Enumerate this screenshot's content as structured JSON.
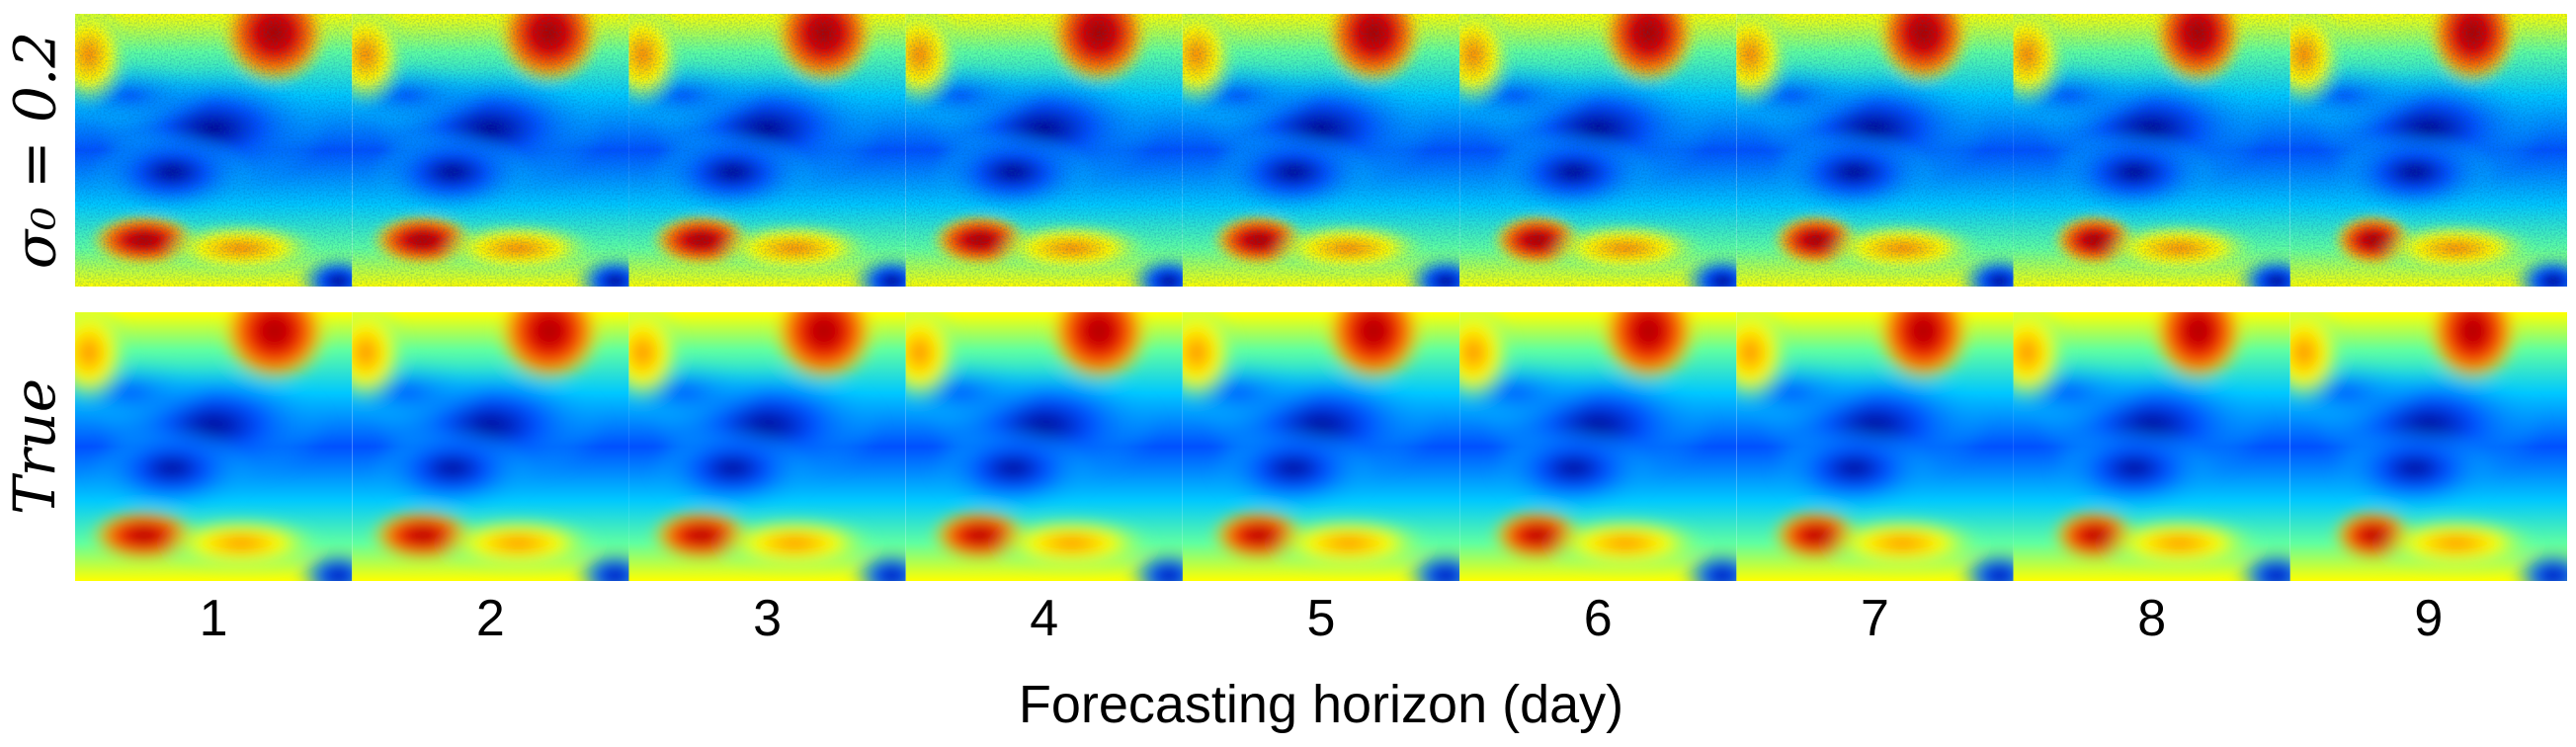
{
  "figure": {
    "rows": [
      {
        "id": "noisy",
        "label": "σ₀ = 0.2",
        "style": "noisy"
      },
      {
        "id": "true",
        "label": "True",
        "style": "smooth"
      }
    ],
    "panels": [
      "1",
      "2",
      "3",
      "4",
      "5",
      "6",
      "7",
      "8",
      "9"
    ],
    "xlabel": "Forecasting horizon (day)",
    "colormap": [
      "#00008f",
      "#0050ff",
      "#00c8ff",
      "#60ffa0",
      "#ffff00",
      "#ff8000",
      "#e00000",
      "#a00000"
    ]
  }
}
